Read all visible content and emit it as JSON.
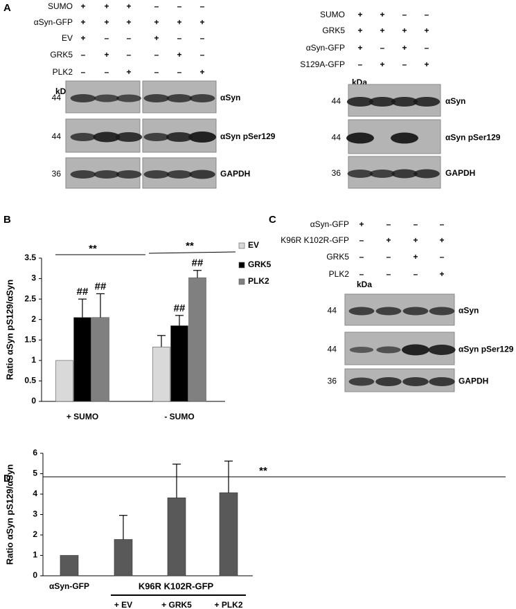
{
  "panel_a": {
    "label": "A",
    "left": {
      "conditions": [
        {
          "name": "SUMO",
          "signs": [
            "+",
            "+",
            "+",
            "–",
            "–",
            "–"
          ]
        },
        {
          "name": "αSyn-GFP",
          "signs": [
            "+",
            "+",
            "+",
            "+",
            "+",
            "+"
          ]
        },
        {
          "name": "EV",
          "signs": [
            "+",
            "–",
            "–",
            "+",
            "–",
            "–"
          ]
        },
        {
          "name": "GRK5",
          "signs": [
            "–",
            "+",
            "–",
            "–",
            "+",
            "–"
          ]
        },
        {
          "name": "PLK2",
          "signs": [
            "–",
            "–",
            "+",
            "–",
            "–",
            "+"
          ]
        }
      ],
      "kda": "kDa",
      "blots": [
        {
          "size": 44,
          "name": "αSyn"
        },
        {
          "size": 44,
          "name": "αSyn pSer129"
        },
        {
          "size": 36,
          "name": "GAPDH"
        }
      ]
    },
    "right": {
      "conditions": [
        {
          "name": "SUMO",
          "signs": [
            "+",
            "+",
            "–",
            "–"
          ]
        },
        {
          "name": "GRK5",
          "signs": [
            "+",
            "+",
            "+",
            "+"
          ]
        },
        {
          "name": "αSyn-GFP",
          "signs": [
            "+",
            "–",
            "+",
            "–"
          ]
        },
        {
          "name": "S129A-GFP",
          "signs": [
            "–",
            "+",
            "–",
            "+"
          ]
        }
      ],
      "kda": "kDa",
      "blots": [
        {
          "size": 44,
          "name": "αSyn"
        },
        {
          "size": 44,
          "name": "αSyn pSer129"
        },
        {
          "size": 36,
          "name": "GAPDH"
        }
      ]
    }
  },
  "panel_c": {
    "label": "C",
    "conditions": [
      {
        "name": "αSyn-GFP",
        "signs": [
          "+",
          "–",
          "–",
          "–"
        ]
      },
      {
        "name": "K96R K102R-GFP",
        "signs": [
          "–",
          "+",
          "+",
          "+"
        ]
      },
      {
        "name": "GRK5",
        "signs": [
          "–",
          "–",
          "+",
          "–"
        ]
      },
      {
        "name": "PLK2",
        "signs": [
          "–",
          "–",
          "–",
          "+"
        ]
      }
    ],
    "kda": "kDa",
    "blots": [
      {
        "size": 44,
        "name": "αSyn"
      },
      {
        "size": 44,
        "name": "αSyn pSer129"
      },
      {
        "size": 36,
        "name": "GAPDH"
      }
    ]
  },
  "chart_data": [
    {
      "type": "bar",
      "panel_label": "B",
      "y_label": "Ratio αSyn pS129/αSyn",
      "categories": [
        "+ SUMO",
        "- SUMO"
      ],
      "series": [
        {
          "name": "EV",
          "color": "#d9d9d9",
          "values": [
            1,
            1.33
          ],
          "errors": [
            null,
            0.28
          ]
        },
        {
          "name": "GRK5",
          "color": "#000000",
          "values": [
            2.05,
            1.85
          ],
          "errors": [
            0.45,
            0.25
          ],
          "significance": [
            "##",
            "##"
          ]
        },
        {
          "name": "PLK2",
          "color": "#808080",
          "values": [
            2.05,
            3.02
          ],
          "errors": [
            0.58,
            0.18
          ],
          "significance": [
            "##",
            "##"
          ]
        }
      ],
      "group_significance": [
        "**",
        "**"
      ],
      "ylim": [
        0,
        3.5
      ],
      "yticks": [
        0,
        0.5,
        1,
        1.5,
        2,
        2.5,
        3,
        3.5
      ],
      "legend": "right",
      "grid": false
    },
    {
      "type": "bar",
      "panel_label": "D",
      "y_label": "Ratio αSyn pS129/αSyn",
      "categories": [
        "αSyn-GFP",
        "+ EV",
        "+ GRK5",
        "+ PLK2"
      ],
      "group_label": "K96R K102R-GFP",
      "color": "#595959",
      "values": [
        1,
        1.78,
        3.82,
        4.07
      ],
      "errors": [
        null,
        1.18,
        1.65,
        1.55
      ],
      "significance": "**",
      "ylim": [
        0,
        6
      ],
      "yticks": [
        0,
        1,
        2,
        3,
        4,
        5,
        6
      ],
      "grid": false
    }
  ]
}
